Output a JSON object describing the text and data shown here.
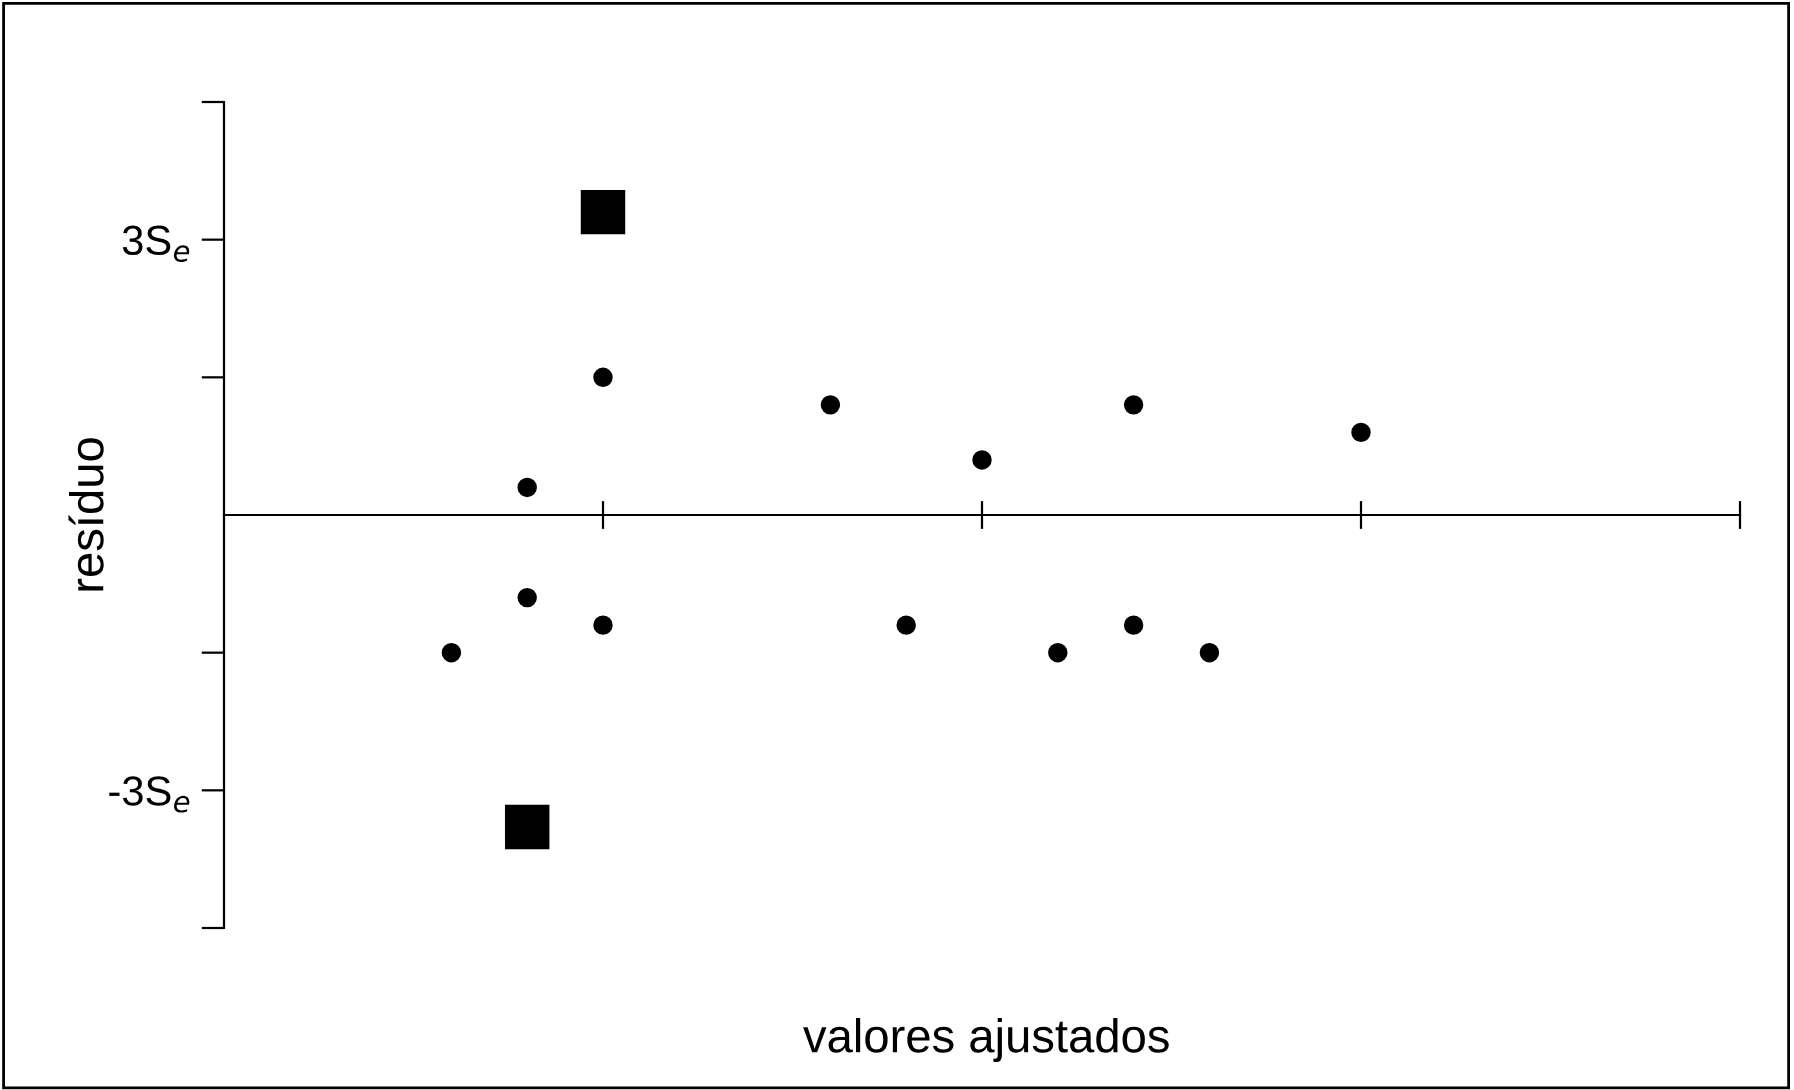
{
  "chart_data": {
    "type": "scatter",
    "xlabel": "valores ajustados",
    "ylabel": "resíduo",
    "categories": [
      null,
      null,
      null,
      null,
      null,
      null,
      null,
      null,
      null,
      null,
      null,
      null,
      null,
      null,
      null,
      null,
      null,
      null,
      null,
      null,
      null
    ],
    "series": [
      {
        "color": "#000000",
        "marker": "circle",
        "values": [
          null,
          null,
          null,
          -1.5,
          0.3,
          1.5,
          null,
          null,
          1.2,
          -1.2,
          0.6,
          -1.5,
          1.2,
          -1.5,
          null,
          0.9,
          null,
          null,
          null,
          null,
          null
        ]
      },
      {
        "color": "#000000",
        "marker": "circle",
        "values": [
          null,
          null,
          null,
          null,
          -0.9,
          -1.2,
          null,
          null,
          null,
          null,
          null,
          null,
          -1.2,
          null,
          null,
          null,
          null,
          null,
          null,
          null,
          null
        ]
      },
      {
        "color": "#000000",
        "marker": "square",
        "values": [
          null,
          null,
          null,
          null,
          -3.4,
          3.3,
          null,
          null,
          null,
          null,
          null,
          null,
          null,
          null,
          null,
          null,
          null,
          null,
          null,
          null,
          null
        ]
      }
    ],
    "ylim": [
      -4.5,
      4.5
    ],
    "yticks": [
      {
        "value": -4.5,
        "label": null
      },
      {
        "value": -3,
        "label": "-3S$_{e}$"
      },
      {
        "value": -1.5,
        "label": null
      },
      {
        "value": 1.5,
        "label": null
      },
      {
        "value": 3,
        "label": "3S$_{e}$"
      },
      {
        "value": 4.5,
        "label": null
      }
    ],
    "tick_labels": "y",
    "grid": false,
    "legend": false
  }
}
